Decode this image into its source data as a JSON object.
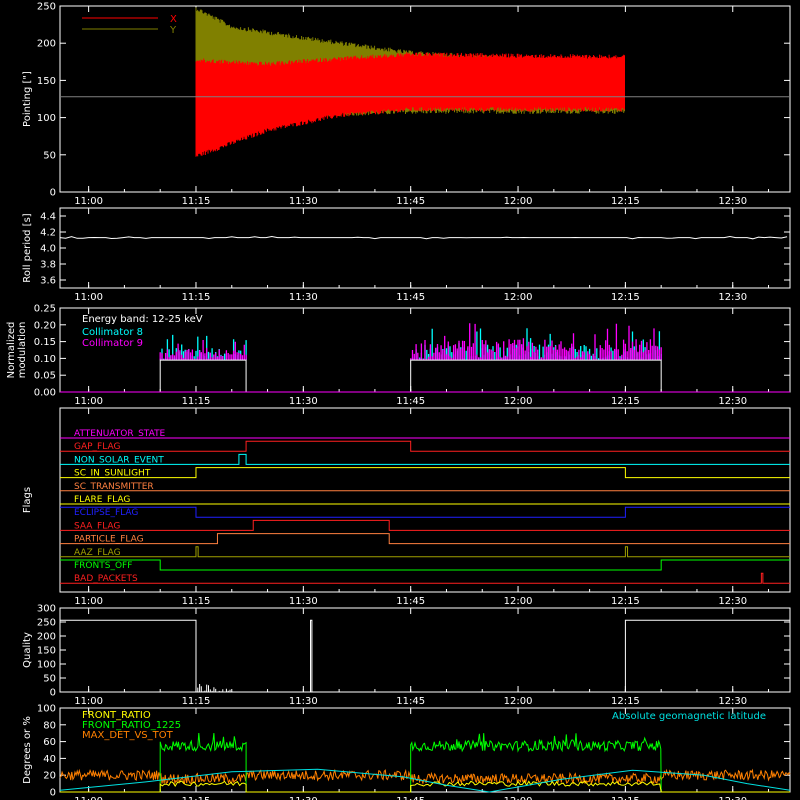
{
  "time_axis": {
    "tick_labels": [
      "11:00",
      "11:15",
      "11:30",
      "11:45",
      "12:00",
      "12:15",
      "12:30"
    ],
    "start": "10:56",
    "end": "12:38"
  },
  "colors": {
    "background": "#000000",
    "frame": "#ffffff",
    "x_series": "#ff0000",
    "y_series": "#808000",
    "cyan": "#00ffff",
    "magenta": "#ff00ff",
    "green": "#00ff00",
    "orange": "#ff8000",
    "latitude": "#00e0e0"
  },
  "chart_data": [
    {
      "id": "pointing",
      "type": "line",
      "ylabel": "Pointing [\"]",
      "ylim": [
        0,
        250
      ],
      "yticks": [
        0,
        50,
        100,
        150,
        200,
        250
      ],
      "reference_line": 128,
      "legend": [
        {
          "name": "X",
          "color": "#ff0000"
        },
        {
          "name": "Y",
          "color": "#808000"
        }
      ],
      "series": [
        {
          "name": "X",
          "color": "#ff0000",
          "envelope": [
            {
              "t": "11:15",
              "min": 45,
              "max": 180
            },
            {
              "t": "11:25",
              "min": 80,
              "max": 175
            },
            {
              "t": "11:35",
              "min": 100,
              "max": 182
            },
            {
              "t": "11:45",
              "min": 108,
              "max": 188
            },
            {
              "t": "12:00",
              "min": 108,
              "max": 186
            },
            {
              "t": "12:15",
              "min": 108,
              "max": 185
            }
          ]
        },
        {
          "name": "Y",
          "color": "#808000",
          "envelope": [
            {
              "t": "11:15",
              "min": 85,
              "max": 250
            },
            {
              "t": "11:20",
              "min": 92,
              "max": 225
            },
            {
              "t": "11:30",
              "min": 100,
              "max": 210
            },
            {
              "t": "11:45",
              "min": 105,
              "max": 190
            },
            {
              "t": "12:00",
              "min": 105,
              "max": 182
            },
            {
              "t": "12:15",
              "min": 105,
              "max": 175
            }
          ]
        }
      ]
    },
    {
      "id": "roll",
      "type": "line",
      "ylabel": "Roll period [s]",
      "ylim": [
        3.5,
        4.5
      ],
      "yticks": [
        3.6,
        3.8,
        4.0,
        4.2,
        4.4
      ],
      "ytick_labels": [
        "3.6",
        "3.8",
        "4.0",
        "4.2",
        "4.4"
      ],
      "series": [
        {
          "name": "roll period",
          "color": "#ffffff",
          "points": [
            [
              "10:56",
              4.13
            ],
            [
              "12:38",
              4.13
            ]
          ]
        }
      ]
    },
    {
      "id": "modulation",
      "type": "line",
      "ylabel": "Normalized modulation",
      "ylabel_lines": [
        "Normalized",
        "modulation"
      ],
      "ylim": [
        0,
        0.25
      ],
      "yticks": [
        0,
        0.05,
        0.1,
        0.15,
        0.2,
        0.25
      ],
      "ytick_labels": [
        "0.00",
        "0.05",
        "0.10",
        "0.15",
        "0.20",
        "0.25"
      ],
      "annotation": "Energy band: 12-25 keV",
      "legend": [
        {
          "name": "Collimator 8",
          "color": "#00ffff"
        },
        {
          "name": "Collimator 9",
          "color": "#ff00ff"
        }
      ],
      "series": [
        {
          "name": "Collimator 8",
          "color": "#00ffff",
          "intervals": [
            {
              "start": "11:10",
              "end": "11:22",
              "base": 0.095,
              "peak": 0.17
            },
            {
              "start": "11:45",
              "end": "12:20",
              "base": 0.095,
              "peak": 0.19
            }
          ]
        },
        {
          "name": "Collimator 9",
          "color": "#ff00ff",
          "intervals": [
            {
              "start": "11:10",
              "end": "11:22",
              "base": 0.095,
              "peak": 0.16
            },
            {
              "start": "11:45",
              "end": "12:20",
              "base": 0.095,
              "peak": 0.22
            }
          ]
        },
        {
          "name": "envelope",
          "color": "#ffffff",
          "intervals": [
            {
              "start": "11:10",
              "end": "11:22",
              "base": 0.095,
              "peak": 0.095
            },
            {
              "start": "11:45",
              "end": "12:20",
              "base": 0.095,
              "peak": 0.095
            }
          ]
        }
      ]
    },
    {
      "id": "flags",
      "type": "line",
      "ylabel": "Flags",
      "series": [
        {
          "name": "ATTENUATOR_STATE",
          "color": "#ff00ff",
          "steps": []
        },
        {
          "name": "GAP_FLAG",
          "color": "#ff2020",
          "steps": [
            [
              "11:22",
              "11:45"
            ]
          ]
        },
        {
          "name": "NON_SOLAR_EVENT",
          "color": "#00ffff",
          "steps": [
            [
              "11:21",
              "11:22"
            ]
          ]
        },
        {
          "name": "SC_IN_SUNLIGHT",
          "color": "#ffff00",
          "steps": [
            [
              "11:15",
              "12:15"
            ]
          ]
        },
        {
          "name": "SC_TRANSMITTER",
          "color": "#ff8040",
          "steps": []
        },
        {
          "name": "FLARE_FLAG",
          "color": "#ffff00",
          "steps": []
        },
        {
          "name": "ECLIPSE_FLAG",
          "color": "#2020ff",
          "inverse": true,
          "steps": [
            [
              "11:15",
              "12:15"
            ]
          ]
        },
        {
          "name": "SAA_FLAG",
          "color": "#ff2020",
          "steps": [
            [
              "11:23",
              "11:42"
            ]
          ]
        },
        {
          "name": "PARTICLE_FLAG",
          "color": "#ff8040",
          "steps": [
            [
              "11:18",
              "11:42"
            ]
          ]
        },
        {
          "name": "AAZ_FLAG",
          "color": "#a0a000",
          "steps": [
            [
              "11:15",
              "11:15.3"
            ],
            [
              "12:15",
              "12:15.3"
            ]
          ]
        },
        {
          "name": "FRONTS_OFF",
          "color": "#00ff00",
          "inverse": true,
          "steps": [
            [
              "11:10",
              "12:20"
            ]
          ]
        },
        {
          "name": "BAD_PACKETS",
          "color": "#ff2020",
          "steps": [
            [
              "12:34",
              "12:34.2"
            ]
          ]
        }
      ]
    },
    {
      "id": "quality",
      "type": "line",
      "ylabel": "Quality",
      "ylim": [
        0,
        300
      ],
      "yticks": [
        0,
        50,
        100,
        150,
        200,
        250,
        300
      ],
      "series": [
        {
          "name": "quality",
          "color": "#ffffff",
          "points": [
            [
              "10:56",
              256
            ],
            [
              "11:15",
              256
            ],
            [
              "11:15",
              0
            ],
            [
              "11:31",
              0
            ],
            [
              "11:31",
              256
            ],
            [
              "11:31.2",
              256
            ],
            [
              "11:31.2",
              0
            ],
            [
              "12:15",
              0
            ],
            [
              "12:15",
              256
            ],
            [
              "12:38",
              256
            ]
          ]
        }
      ]
    },
    {
      "id": "degrees",
      "type": "line",
      "ylabel": "Degrees or %",
      "ylim": [
        0,
        100
      ],
      "yticks": [
        0,
        20,
        40,
        60,
        80,
        100
      ],
      "legend": [
        {
          "name": "FRONT_RATIO",
          "color": "#ffff00"
        },
        {
          "name": "FRONT_RATIO_1225",
          "color": "#00ff00"
        },
        {
          "name": "MAX_DET_VS_TOT",
          "color": "#ff8000"
        }
      ],
      "latitude_label": "Absolute geomagnetic latitude",
      "series": [
        {
          "name": "FRONT_RATIO_1225",
          "color": "#00ff00",
          "intervals": [
            {
              "start": "11:10",
              "end": "11:22",
              "level": 55
            },
            {
              "start": "11:45",
              "end": "12:20",
              "level": 55
            }
          ]
        },
        {
          "name": "FRONT_RATIO",
          "color": "#ffff00",
          "intervals": [
            {
              "start": "11:10",
              "end": "11:22",
              "level": 10
            },
            {
              "start": "11:45",
              "end": "12:20",
              "level": 10
            }
          ]
        },
        {
          "name": "MAX_DET_VS_TOT",
          "color": "#ff8000",
          "baseline": 20
        },
        {
          "name": "Absolute geomagnetic latitude",
          "color": "#00e0e0",
          "points": [
            [
              "10:56",
              2
            ],
            [
              "11:08",
              12
            ],
            [
              "11:20",
              24
            ],
            [
              "11:32",
              27
            ],
            [
              "11:44",
              18
            ],
            [
              "11:50",
              8
            ],
            [
              "11:56",
              0
            ],
            [
              "12:06",
              15
            ],
            [
              "12:16",
              26
            ],
            [
              "12:26",
              20
            ],
            [
              "12:32",
              10
            ],
            [
              "12:38",
              2
            ]
          ]
        }
      ]
    }
  ]
}
